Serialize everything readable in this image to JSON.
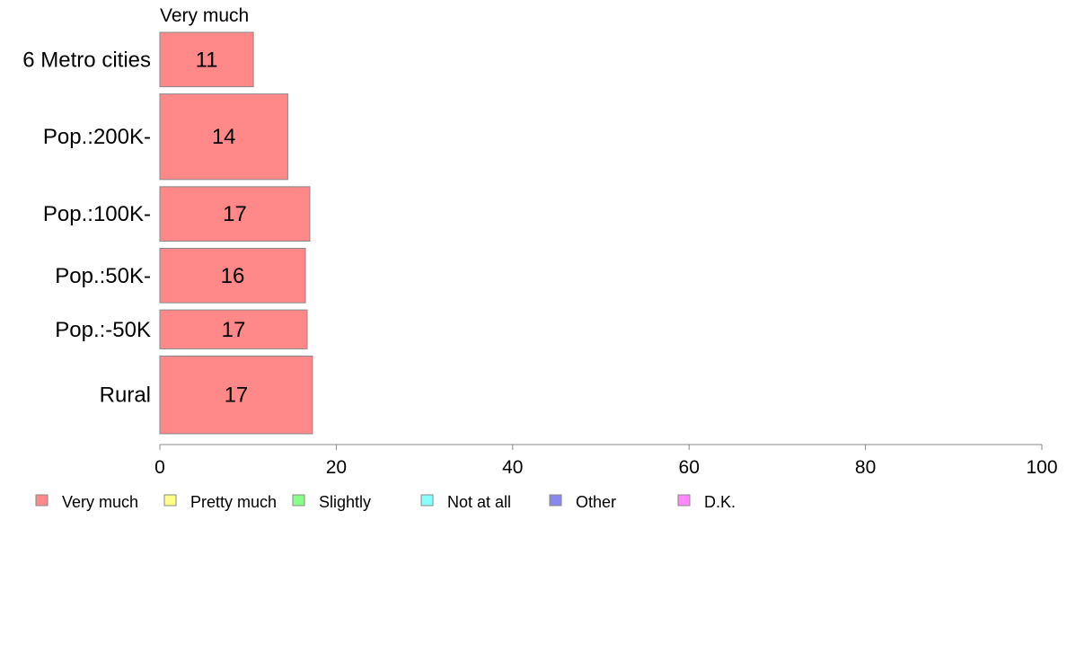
{
  "chart_data": {
    "type": "bar",
    "orientation": "horizontal",
    "series_title": "Very much",
    "categories": [
      "6 Metro cities",
      "Pop.:200K-",
      "Pop.:100K-",
      "Pop.:50K-",
      "Pop.:-50K",
      "Rural"
    ],
    "series": [
      {
        "name": "Very much",
        "values": [
          10.6,
          14.5,
          17.0,
          16.5,
          16.7,
          17.3
        ],
        "labels": [
          "11",
          "14",
          "17",
          "16",
          "17",
          "17"
        ]
      }
    ],
    "relative_widths": [
      7,
      11,
      7,
      7,
      5,
      10
    ],
    "xlim": [
      0,
      100
    ],
    "xticks": [
      "0",
      "20",
      "40",
      "60",
      "80",
      "100"
    ],
    "xtick_values": [
      0,
      20,
      40,
      60,
      80,
      100
    ],
    "grid": false,
    "legend_placement": "bottom-left",
    "legend": [
      {
        "label": "Very much",
        "color": "#ff8888"
      },
      {
        "label": "Pretty much",
        "color": "#ffff88"
      },
      {
        "label": "Slightly",
        "color": "#88ff88"
      },
      {
        "label": "Not at all",
        "color": "#88ffff"
      },
      {
        "label": "Other",
        "color": "#8888ee"
      },
      {
        "label": "D.K.",
        "color": "#ff88ff"
      }
    ],
    "bar_color": "#ff8888",
    "bar_stroke": "#888888",
    "axis_color": "#888888"
  }
}
